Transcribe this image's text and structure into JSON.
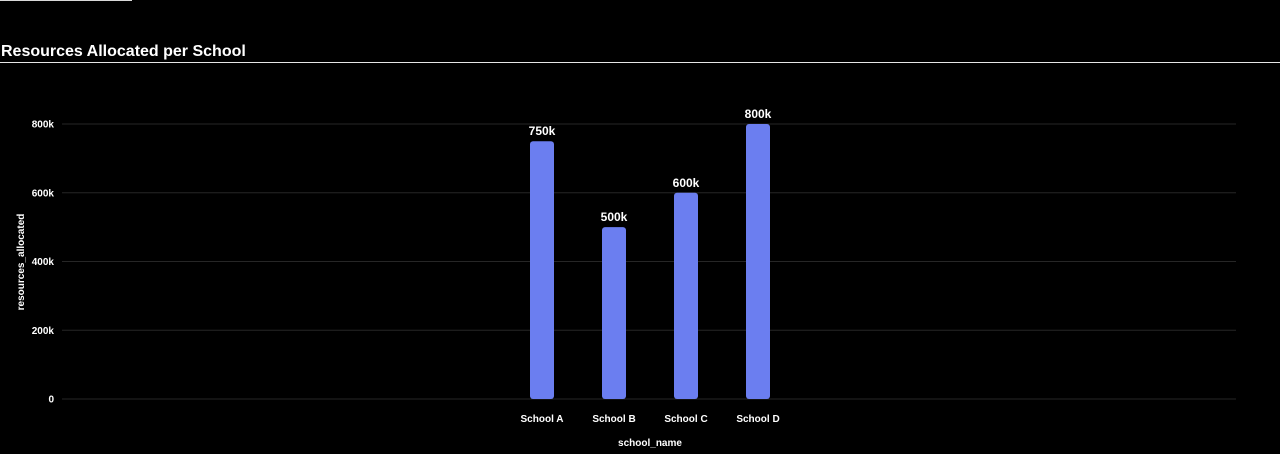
{
  "chart_data": {
    "type": "bar",
    "title": "Resources Allocated per School",
    "xlabel": "school_name",
    "ylabel": "resources_allocated",
    "categories": [
      "School A",
      "School B",
      "School C",
      "School D"
    ],
    "values": [
      750000,
      500000,
      600000,
      800000
    ],
    "data_labels": [
      "750k",
      "500k",
      "600k",
      "800k"
    ],
    "ylim": [
      0,
      800000
    ],
    "yticks": [
      0,
      200000,
      400000,
      600000,
      800000
    ],
    "ytick_labels": [
      "0",
      "200k",
      "400k",
      "600k",
      "800k"
    ],
    "grid": true,
    "bar_color": "#6b7ef0",
    "grid_color": "#262626",
    "background": "#000000"
  }
}
